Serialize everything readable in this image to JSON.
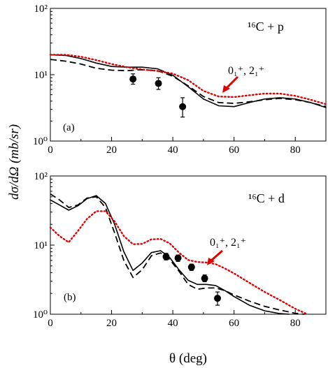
{
  "figure": {
    "ylabel": "dσ/dΩ (mb/sr)",
    "xlabel": "θ (deg)",
    "colors": {
      "solid": "#000000",
      "dashed": "#000000",
      "dotted": "#e00000",
      "arrow": "#e00000",
      "points": "#000000"
    }
  },
  "chart_data": [
    {
      "type": "line",
      "panel_label": "(a)",
      "reaction": "¹⁶C + p",
      "states_annotation": "0₁⁺, 2₁⁺",
      "xlim": [
        0,
        90
      ],
      "ylim": [
        1,
        100
      ],
      "yscale": "log",
      "x_ticks": [
        "0",
        "20",
        "40",
        "60",
        "80"
      ],
      "y_ticks": [
        "10⁰",
        "10¹",
        "10²"
      ],
      "series": [
        {
          "style": "solid",
          "x": [
            0,
            5,
            10,
            15,
            20,
            25,
            30,
            35,
            40,
            45,
            50,
            55,
            60,
            65,
            70,
            75,
            80,
            85,
            90
          ],
          "y": [
            20,
            19.5,
            17.5,
            15,
            13.3,
            13,
            13,
            12.3,
            9.8,
            6.6,
            4.3,
            3.4,
            3.3,
            3.8,
            4.3,
            4.5,
            4.3,
            3.8,
            3.2
          ]
        },
        {
          "style": "dashed",
          "x": [
            0,
            5,
            10,
            15,
            20,
            25,
            30,
            35,
            40,
            45,
            50,
            55,
            60,
            65,
            70,
            75,
            80,
            85,
            90
          ],
          "y": [
            17,
            16,
            14.5,
            12.5,
            11.7,
            11.5,
            11.9,
            11.5,
            9.5,
            6.8,
            4.7,
            3.8,
            3.7,
            3.9,
            4.2,
            4.4,
            4.2,
            3.8,
            3.3
          ]
        },
        {
          "style": "dotted",
          "x": [
            0,
            5,
            10,
            15,
            20,
            25,
            30,
            35,
            40,
            45,
            50,
            55,
            60,
            65,
            70,
            75,
            80,
            85,
            90
          ],
          "y": [
            20,
            20,
            18.7,
            16.6,
            14.5,
            13,
            12,
            11.4,
            10.4,
            8.3,
            5.7,
            4.7,
            4.6,
            4.9,
            5.2,
            5.2,
            4.8,
            4.2,
            3.6
          ]
        }
      ],
      "points": [
        {
          "x": 27,
          "y": 8.6,
          "yerr_lo": 7.2,
          "yerr_hi": 10.3
        },
        {
          "x": 35.3,
          "y": 7.4,
          "yerr_lo": 6.0,
          "yerr_hi": 9.0
        },
        {
          "x": 43.2,
          "y": 3.3,
          "yerr_lo": 2.3,
          "yerr_hi": 4.5
        }
      ]
    },
    {
      "type": "line",
      "panel_label": "(b)",
      "reaction": "¹⁶C + d",
      "states_annotation": "0₁⁺, 2₁⁺",
      "xlim": [
        0,
        90
      ],
      "ylim": [
        1,
        100
      ],
      "yscale": "log",
      "x_ticks": [
        "0",
        "20",
        "40",
        "60",
        "80"
      ],
      "y_ticks": [
        "10⁰",
        "10¹",
        "10²"
      ],
      "series": [
        {
          "style": "solid",
          "x": [
            0,
            3,
            6,
            9,
            12,
            15,
            18,
            21,
            24,
            27,
            30,
            33,
            36,
            39,
            42,
            45,
            48,
            51,
            54,
            57,
            60,
            65,
            70,
            75,
            78
          ],
          "y": [
            45,
            38,
            32,
            37,
            47,
            52,
            40,
            20,
            8,
            4.3,
            5.5,
            7.8,
            8.3,
            6.6,
            4.4,
            3.1,
            2.7,
            2.7,
            2.6,
            2.2,
            1.8,
            1.35,
            1.12,
            1.02,
            1.0
          ]
        },
        {
          "style": "dashed",
          "x": [
            0,
            3,
            6,
            9,
            12,
            15,
            18,
            21,
            24,
            27,
            30,
            33,
            36,
            39,
            42,
            45,
            48,
            51,
            54,
            57,
            60,
            65,
            70,
            75,
            80,
            83
          ],
          "y": [
            55,
            45,
            35,
            38,
            48,
            50,
            35,
            15,
            6,
            3.4,
            4.4,
            7,
            7.7,
            6.2,
            4.2,
            2.7,
            2.3,
            2.4,
            2.4,
            2.2,
            1.9,
            1.55,
            1.3,
            1.15,
            1.03,
            1.0
          ]
        },
        {
          "style": "dotted",
          "x": [
            0,
            3,
            6,
            9,
            12,
            15,
            18,
            21,
            24,
            27,
            30,
            33,
            36,
            39,
            42,
            45,
            48,
            51,
            54,
            57,
            60,
            65,
            70,
            75,
            80,
            84
          ],
          "y": [
            18,
            13.5,
            11,
            16,
            24,
            31,
            31,
            22,
            13.5,
            10.3,
            10.4,
            12.1,
            12.3,
            10.6,
            7.8,
            6.1,
            5.7,
            5.6,
            5.3,
            4.6,
            3.9,
            2.85,
            2.1,
            1.6,
            1.2,
            1.0
          ]
        }
      ],
      "points": [
        {
          "x": 37.8,
          "y": 6.8,
          "yerr_lo": 6.1,
          "yerr_hi": 7.6
        },
        {
          "x": 41.7,
          "y": 6.5,
          "yerr_lo": 5.8,
          "yerr_hi": 7.2
        },
        {
          "x": 46.1,
          "y": 4.8,
          "yerr_lo": 4.3,
          "yerr_hi": 5.3
        },
        {
          "x": 50.4,
          "y": 3.3,
          "yerr_lo": 2.95,
          "yerr_hi": 3.7
        },
        {
          "x": 54.6,
          "y": 1.7,
          "yerr_lo": 1.35,
          "yerr_hi": 2.1
        }
      ]
    }
  ]
}
